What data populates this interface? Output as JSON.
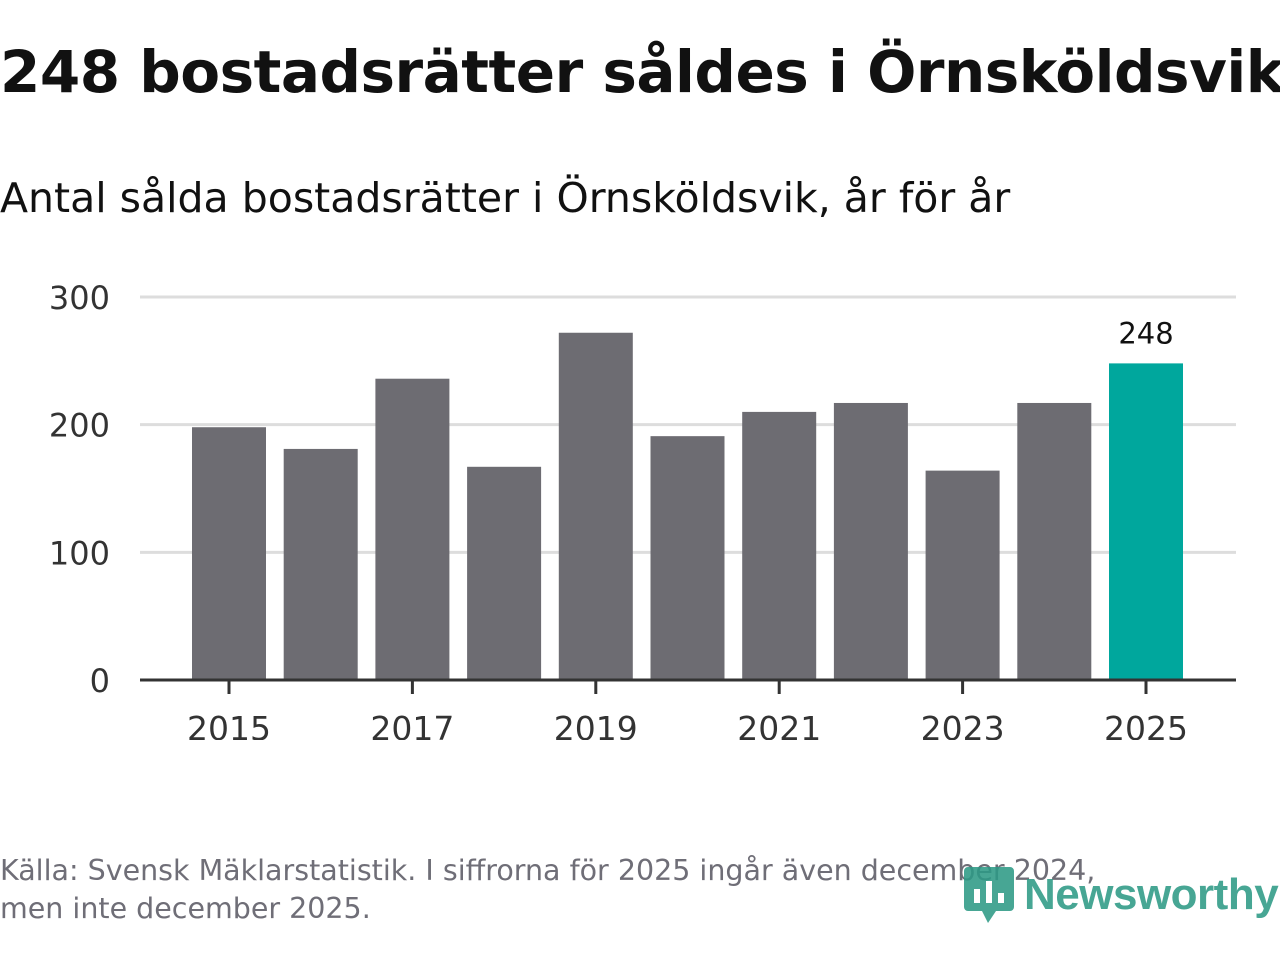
{
  "header": {
    "title": "248 bostadsrätter såldes i Örnsköldsvik",
    "subtitle": "Antal sålda bostadsrätter i Örnsköldsvik, år för år"
  },
  "chart_data": {
    "type": "bar",
    "title": "248 bostadsrätter såldes i Örnsköldsvik",
    "subtitle": "Antal sålda bostadsrätter i Örnsköldsvik, år för år",
    "categories": [
      "2015",
      "2016",
      "2017",
      "2018",
      "2019",
      "2020",
      "2021",
      "2022",
      "2023",
      "2024",
      "2025"
    ],
    "values": [
      198,
      181,
      236,
      167,
      272,
      191,
      210,
      217,
      164,
      217,
      248
    ],
    "x_tick_labels": [
      "2015",
      "2017",
      "2019",
      "2021",
      "2023",
      "2025"
    ],
    "y_ticks": [
      0,
      100,
      200,
      300
    ],
    "ylim": [
      0,
      300
    ],
    "xlabel": "",
    "ylabel": "",
    "grid": true,
    "highlight_category": "2025",
    "data_labels": [
      {
        "category": "2025",
        "text": "248"
      }
    ],
    "colors": {
      "bar": "#6d6c72",
      "highlight": "#00a79d",
      "grid": "#dddddd",
      "axis": "#333333",
      "tick_text": "#333333"
    }
  },
  "footer": {
    "source_line1": "Källa: Svensk Mäklarstatistik. I siffrorna för 2025 ingår även december 2024,",
    "source_line2": "men inte december 2025.",
    "logo_text": "Newsworthy",
    "logo_icon": "newsworthy-logo-icon",
    "logo_color": "#2e9a86"
  }
}
